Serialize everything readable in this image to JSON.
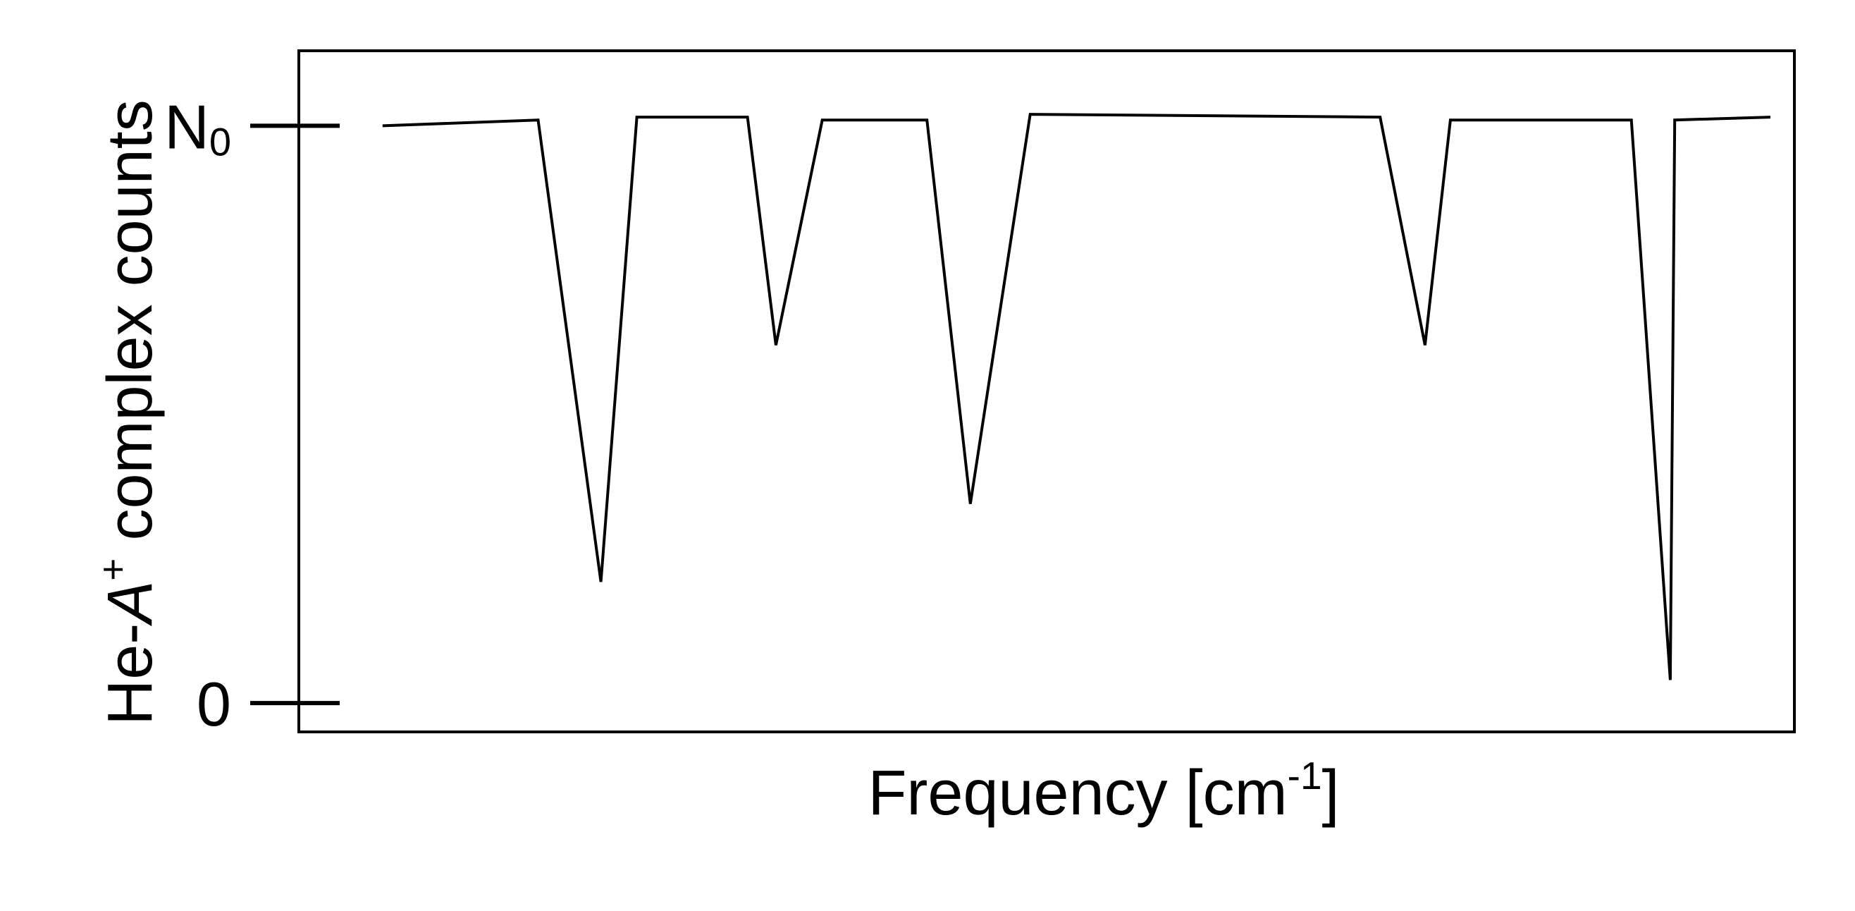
{
  "chart_data": {
    "type": "line",
    "title": "",
    "xlabel": {
      "text": "Frequency [cm",
      "superscript": "-1",
      "suffix": "]"
    },
    "ylabel": {
      "prefix": "He-",
      "italic": "A",
      "superscript": "+",
      "suffix": " complex counts"
    },
    "y_ticks": [
      {
        "value": 0,
        "label": "0",
        "subscript": ""
      },
      {
        "value": 1,
        "label": "N",
        "subscript": "0"
      }
    ],
    "x_ticks": [],
    "xlim": [
      0,
      100
    ],
    "ylim": [
      -0.05,
      1.13
    ],
    "grid": false,
    "legend": "none",
    "series": [
      {
        "x": [
          5.6,
          16.0,
          20.2,
          22.6,
          30.0,
          31.9,
          35.0,
          42.0,
          44.9,
          48.9,
          72.3,
          75.3,
          77.0,
          89.1,
          91.7,
          92.0,
          98.4
        ],
        "y": [
          1.0,
          1.01,
          0.21,
          1.015,
          1.015,
          0.62,
          1.01,
          1.01,
          0.345,
          1.02,
          1.015,
          0.62,
          1.01,
          1.01,
          0.04,
          1.01,
          1.015
        ]
      }
    ],
    "colors": {
      "line": "#000000",
      "axes": "#000000",
      "background": "#ffffff"
    }
  }
}
